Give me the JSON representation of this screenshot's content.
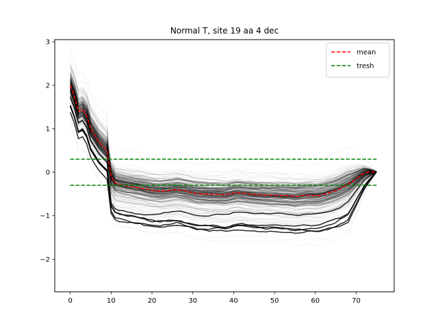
{
  "chart_data": {
    "type": "line",
    "title": "Normal T, site 19 aa 4 dec",
    "xlabel": "",
    "ylabel": "",
    "xlim": [
      -3.8,
      79.3
    ],
    "ylim": [
      -2.75,
      3.05
    ],
    "xticks": [
      0,
      10,
      20,
      30,
      40,
      50,
      60,
      70
    ],
    "yticks": [
      -2,
      -1,
      0,
      1,
      2,
      3
    ],
    "xtick_labels": [
      "0",
      "10",
      "20",
      "30",
      "40",
      "50",
      "60",
      "70"
    ],
    "ytick_labels": [
      "−2",
      "−1",
      "0",
      "1",
      "2",
      "3"
    ],
    "grid": false,
    "legend_position": "top-right",
    "series": [
      {
        "name": "mean",
        "style": "dashed",
        "color": "#ff0000",
        "x": [
          0,
          1,
          2,
          3,
          4,
          5,
          6,
          7,
          8,
          9,
          10,
          11,
          12,
          13,
          14,
          15,
          16,
          17,
          18,
          19,
          20,
          21,
          22,
          23,
          24,
          25,
          26,
          27,
          28,
          29,
          30,
          31,
          32,
          33,
          34,
          35,
          36,
          37,
          38,
          39,
          40,
          41,
          42,
          43,
          44,
          45,
          46,
          47,
          48,
          49,
          50,
          51,
          52,
          53,
          54,
          55,
          56,
          57,
          58,
          59,
          60,
          61,
          62,
          63,
          64,
          65,
          66,
          67,
          68,
          69,
          70,
          71,
          72,
          73,
          74,
          75
        ],
        "y": [
          2.0,
          1.75,
          1.4,
          1.45,
          1.3,
          1.0,
          0.85,
          0.7,
          0.6,
          0.5,
          -0.1,
          -0.25,
          -0.28,
          -0.3,
          -0.32,
          -0.33,
          -0.35,
          -0.36,
          -0.38,
          -0.4,
          -0.42,
          -0.43,
          -0.44,
          -0.43,
          -0.42,
          -0.41,
          -0.4,
          -0.41,
          -0.43,
          -0.45,
          -0.47,
          -0.49,
          -0.5,
          -0.5,
          -0.51,
          -0.51,
          -0.51,
          -0.52,
          -0.52,
          -0.5,
          -0.48,
          -0.47,
          -0.48,
          -0.49,
          -0.5,
          -0.51,
          -0.52,
          -0.52,
          -0.53,
          -0.53,
          -0.53,
          -0.53,
          -0.54,
          -0.54,
          -0.55,
          -0.56,
          -0.55,
          -0.54,
          -0.53,
          -0.53,
          -0.54,
          -0.53,
          -0.51,
          -0.48,
          -0.45,
          -0.42,
          -0.38,
          -0.33,
          -0.28,
          -0.22,
          -0.15,
          -0.08,
          -0.02,
          0.0,
          0.01,
          0.01
        ]
      },
      {
        "name": "tresh",
        "style": "dashed",
        "color": "#008000",
        "x": [
          0,
          75
        ],
        "y": [
          0.3,
          0.3
        ]
      },
      {
        "name": "",
        "style": "dashed",
        "color": "#008000",
        "x": [
          0,
          75
        ],
        "y": [
          -0.3,
          -0.3
        ]
      }
    ]
  }
}
